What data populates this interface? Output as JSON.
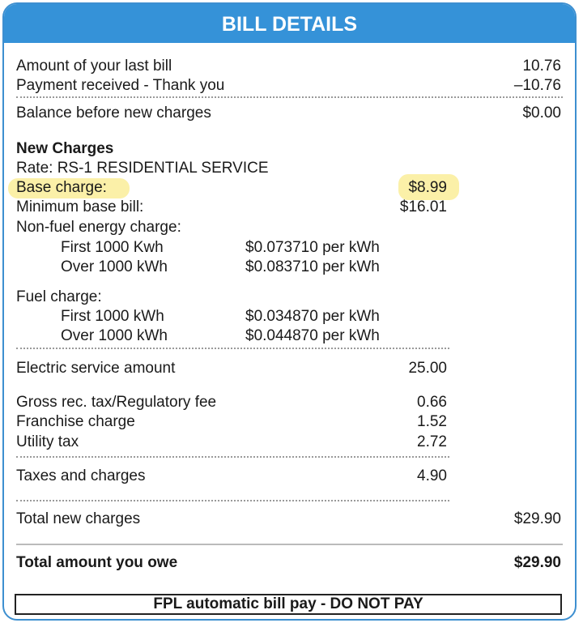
{
  "title": "BILL DETAILS",
  "highlight_color": "#fbf0a8",
  "header_color": "#3592d8",
  "summary": [
    {
      "label": "Amount of your last bill",
      "value": "10.76"
    },
    {
      "label": "Payment received - Thank you",
      "value": "–10.76"
    },
    {
      "label": "Balance before new charges",
      "value": "$0.00"
    }
  ],
  "new_charges": {
    "heading": "New Charges",
    "rate": "Rate: RS-1 RESIDENTIAL SERVICE",
    "base_charge": {
      "label": "Base charge:",
      "value": "$8.99"
    },
    "minimum_base_bill": {
      "label": "Minimum base bill:",
      "value": "$16.01"
    },
    "non_fuel": {
      "label": "Non-fuel energy charge:",
      "tiers": [
        {
          "label": "First 1000 Kwh",
          "rate": "$0.073710 per kWh"
        },
        {
          "label": "Over 1000 kWh",
          "rate": "$0.083710 per kWh"
        }
      ]
    },
    "fuel": {
      "label": "Fuel charge:",
      "tiers": [
        {
          "label": "First 1000 kWh",
          "rate": "$0.034870 per kWh"
        },
        {
          "label": "Over 1000 kWh",
          "rate": "$0.044870 per kWh"
        }
      ]
    },
    "electric_service": {
      "label": "Electric service amount",
      "value": "25.00"
    },
    "taxes": [
      {
        "label": "Gross rec. tax/Regulatory fee",
        "value": "0.66"
      },
      {
        "label": "Franchise charge",
        "value": "1.52"
      },
      {
        "label": "Utility tax",
        "value": "2.72"
      }
    ],
    "taxes_total": {
      "label": "Taxes and charges",
      "value": "4.90"
    }
  },
  "total_new": {
    "label": "Total new charges",
    "value": "$29.90"
  },
  "total_owe": {
    "label": "Total amount you owe",
    "value": "$29.90"
  },
  "notice": "FPL automatic bill pay - DO NOT PAY"
}
